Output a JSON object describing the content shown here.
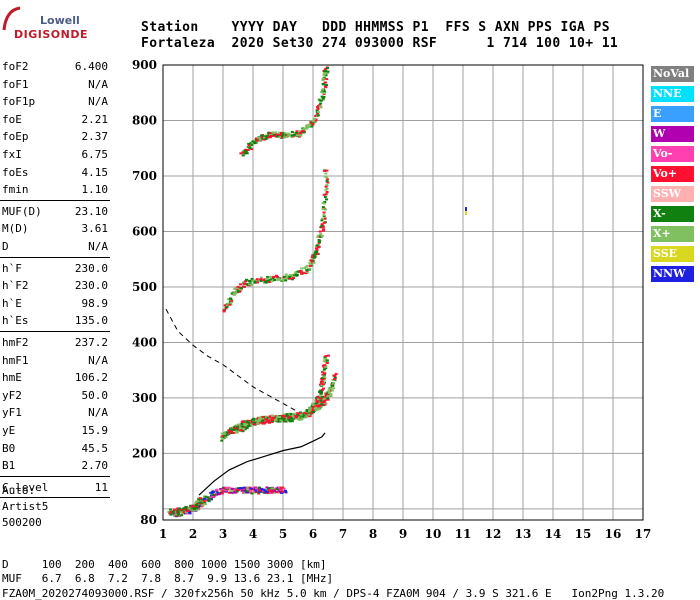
{
  "logo": {
    "top": "Lowell",
    "bottom": "DIGISONDE"
  },
  "header": {
    "row1": "Station    YYYY DAY   DDD HHMMSS P1  FFS S AXN PPS IGA PS",
    "row2": "Fortaleza  2020 Set30 274 093000 RSF      1 714 100 10+ 11"
  },
  "params_group1": [
    {
      "name": "foF2",
      "value": "6.400"
    },
    {
      "name": "foF1",
      "value": "N/A"
    },
    {
      "name": "foF1p",
      "value": "N/A"
    },
    {
      "name": "foE",
      "value": "2.21"
    },
    {
      "name": "foEp",
      "value": "2.37"
    },
    {
      "name": "fxI",
      "value": "6.75"
    },
    {
      "name": "foEs",
      "value": "4.15"
    },
    {
      "name": "fmin",
      "value": "1.10"
    }
  ],
  "params_group2": [
    {
      "name": "MUF(D)",
      "value": "23.10"
    },
    {
      "name": "M(D)",
      "value": "3.61"
    },
    {
      "name": "D",
      "value": "N/A"
    }
  ],
  "params_group3": [
    {
      "name": "h`F",
      "value": "230.0"
    },
    {
      "name": "h`F2",
      "value": "230.0"
    },
    {
      "name": "h`E",
      "value": "98.9"
    },
    {
      "name": "h`Es",
      "value": "135.0"
    }
  ],
  "params_group4": [
    {
      "name": "hmF2",
      "value": "237.2"
    },
    {
      "name": "hmF1",
      "value": "N/A"
    },
    {
      "name": "hmE",
      "value": "106.2"
    },
    {
      "name": "yF2",
      "value": "50.0"
    },
    {
      "name": "yF1",
      "value": "N/A"
    },
    {
      "name": "yE",
      "value": "15.9"
    },
    {
      "name": "B0",
      "value": "45.5"
    },
    {
      "name": "B1",
      "value": "2.70"
    }
  ],
  "params_group5": [
    {
      "name": "C-level",
      "value": "11"
    }
  ],
  "autoscale": {
    "line1": "Auto:",
    "line2": "Artist5",
    "line3": "500200"
  },
  "footer": {
    "row1": "D     100  200  400  600  800 1000 1500 3000 [km]",
    "row2": "MUF   6.7  6.8  7.2  7.8  8.7  9.9 13.6 23.1 [MHz]",
    "row3": "FZA0M_2020274093000.RSF / 320fx256h 50 kHz 5.0 km / DPS-4 FZA0M 904 / 3.9 S 321.6 E   Ion2Png 1.3.20"
  },
  "legend": [
    {
      "label": "NoVal",
      "color": "#808080"
    },
    {
      "label": "NNE",
      "color": "#00e0ff"
    },
    {
      "label": "E",
      "color": "#3aa0ff"
    },
    {
      "label": "W",
      "color": "#b000b0"
    },
    {
      "label": "Vo-",
      "color": "#ff40b0"
    },
    {
      "label": "Vo+",
      "color": "#ff1030"
    },
    {
      "label": "SSW",
      "color": "#ffb0b0"
    },
    {
      "label": "X-",
      "color": "#108010"
    },
    {
      "label": "X+",
      "color": "#80c060"
    },
    {
      "label": "SSE",
      "color": "#d8d820"
    },
    {
      "label": "NNW",
      "color": "#2020e0"
    }
  ],
  "chart_data": {
    "type": "scatter",
    "xlabel": "",
    "ylabel": "",
    "xlim": [
      1,
      17
    ],
    "ylim": [
      80,
      900
    ],
    "x_ticks": [
      1,
      2,
      3,
      4,
      5,
      6,
      7,
      8,
      9,
      10,
      11,
      12,
      13,
      14,
      15,
      16,
      17
    ],
    "y_ticks": [
      80,
      200,
      300,
      400,
      500,
      600,
      700,
      800,
      900
    ],
    "grid": true,
    "traces": [
      {
        "name": "Es",
        "x": [
          1.3,
          1.8,
          2.2,
          2.6,
          3.0,
          3.4,
          3.8,
          4.2,
          4.6,
          5.0
        ],
        "y": [
          92,
          98,
          110,
          128,
          135,
          135,
          135,
          135,
          135,
          135
        ]
      },
      {
        "name": "E",
        "x": [
          1.2,
          1.6,
          2.0,
          2.2
        ],
        "y": [
          95,
          99,
          104,
          118
        ]
      },
      {
        "name": "F2-O",
        "x": [
          2.9,
          3.2,
          3.6,
          4.0,
          4.5,
          5.0,
          5.5,
          5.8,
          6.0,
          6.2,
          6.3,
          6.4
        ],
        "y": [
          230,
          242,
          254,
          259,
          262,
          264,
          267,
          275,
          285,
          305,
          335,
          375
        ]
      },
      {
        "name": "F2-X",
        "x": [
          3.4,
          3.8,
          4.2,
          4.7,
          5.2,
          5.8,
          6.2,
          6.5,
          6.7
        ],
        "y": [
          242,
          255,
          262,
          265,
          268,
          274,
          288,
          310,
          340
        ]
      },
      {
        "name": "F2-2hop",
        "x": [
          3.0,
          3.4,
          3.8,
          4.5,
          5.2,
          5.8,
          6.1,
          6.3,
          6.4
        ],
        "y": [
          460,
          495,
          510,
          515,
          520,
          535,
          570,
          620,
          710
        ]
      },
      {
        "name": "F2-3hop",
        "x": [
          3.6,
          4.0,
          4.5,
          5.0,
          5.5,
          6.0,
          6.3,
          6.4
        ],
        "y": [
          740,
          765,
          775,
          776,
          778,
          800,
          850,
          900
        ]
      }
    ],
    "profile": {
      "x": [
        2.2,
        2.7,
        3.2,
        3.8,
        4.4,
        5.0,
        5.6,
        6.0,
        6.3,
        6.4
      ],
      "y": [
        125,
        150,
        170,
        185,
        195,
        205,
        212,
        222,
        230,
        237
      ]
    },
    "dashed_curve": {
      "x": [
        1.1,
        1.5,
        2.0,
        2.5,
        3.0,
        3.5,
        4.0,
        4.5,
        5.0,
        5.5
      ],
      "y": [
        460,
        420,
        395,
        375,
        360,
        340,
        320,
        305,
        290,
        275
      ]
    },
    "isolated_point": {
      "x": 11.1,
      "y": 635
    }
  }
}
